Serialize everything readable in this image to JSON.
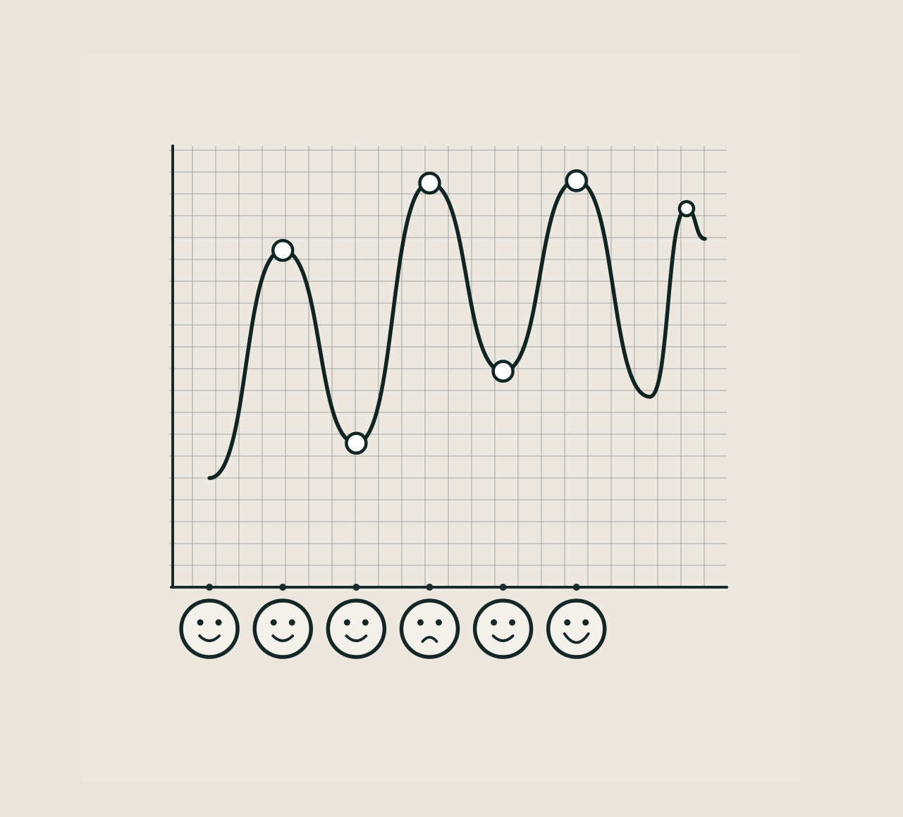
{
  "chart_data": {
    "type": "line",
    "title": "",
    "xlabel": "",
    "ylabel": "",
    "grid": true,
    "line_color": "#102424",
    "background_color": "#ece8e0",
    "series": [
      {
        "points": [
          {
            "x": 0.5,
            "y": 4.7
          },
          {
            "x": 1.5,
            "y": 14.5
          },
          {
            "x": 2.5,
            "y": 6.2
          },
          {
            "x": 3.5,
            "y": 17.4
          },
          {
            "x": 4.5,
            "y": 9.3
          },
          {
            "x": 5.5,
            "y": 17.5
          },
          {
            "x": 6.5,
            "y": 8.2
          },
          {
            "x": 7.0,
            "y": 16.3
          },
          {
            "x": 7.25,
            "y": 15.0
          }
        ],
        "marker_indices": [
          1,
          2,
          3,
          4,
          5,
          7
        ]
      }
    ],
    "xlim": [
      0,
      7.25
    ],
    "ylim": [
      0,
      19
    ],
    "x_tick_positions": [
      0.5,
      1.5,
      2.5,
      3.5,
      4.5,
      5.5
    ],
    "x_tick_icons": [
      "smiley-face-icon",
      "smiley-face-icon",
      "smiley-face-icon",
      "sad-face-icon",
      "smiley-face-icon",
      "grinning-face-icon"
    ]
  }
}
